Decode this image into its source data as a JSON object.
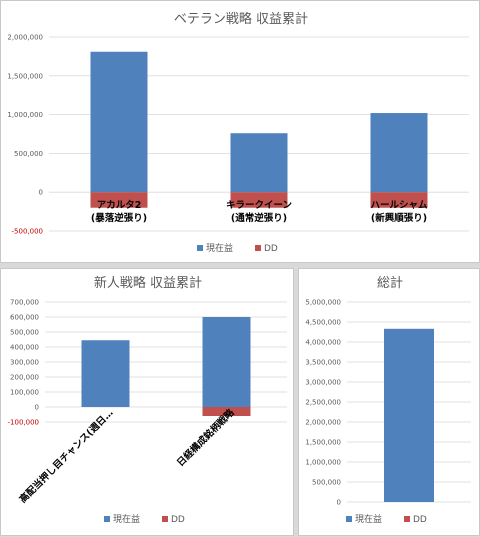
{
  "colors": {
    "current": "#4f81bd",
    "dd": "#c0504d",
    "grid": "#d9d9d9",
    "negative_tick": "#c00000"
  },
  "chart_data": [
    {
      "type": "bar",
      "title": "ベテラン戦略 収益累計",
      "categories": [
        "アカルタ2\n(暴落逆張り)",
        "キラークイーン\n(通常逆張り)",
        "ハールシャム\n(新興順張り)"
      ],
      "series": [
        {
          "name": "現在益",
          "values": [
            1810000,
            760000,
            1020000
          ]
        },
        {
          "name": "DD",
          "values": [
            -200000,
            -200000,
            -200000
          ]
        }
      ],
      "yticks": [
        "2,000,000",
        "1,500,000",
        "1,000,000",
        "500,000",
        "0",
        "-500,000"
      ],
      "ylim": [
        -500000,
        2000000
      ],
      "legend": "bottom"
    },
    {
      "type": "bar",
      "title": "新人戦略 収益累計",
      "categories": [
        "高配当押し目チャンス(週日…",
        "日経構成銘柄戦略"
      ],
      "series": [
        {
          "name": "現在益",
          "values": [
            445000,
            600000
          ]
        },
        {
          "name": "DD",
          "values": [
            0,
            -60000
          ]
        }
      ],
      "yticks": [
        "700,000",
        "600,000",
        "500,000",
        "400,000",
        "300,000",
        "200,000",
        "100,000",
        "0",
        "-100,000"
      ],
      "ylim": [
        -100000,
        700000
      ],
      "legend": "bottom"
    },
    {
      "type": "bar",
      "title": "総計",
      "categories": [
        ""
      ],
      "series": [
        {
          "name": "現在益",
          "values": [
            4330000
          ]
        },
        {
          "name": "DD",
          "values": [
            0
          ]
        }
      ],
      "yticks": [
        "5,000,000",
        "4,500,000",
        "4,000,000",
        "3,500,000",
        "3,000,000",
        "2,500,000",
        "2,000,000",
        "1,500,000",
        "1,000,000",
        "500,000",
        "0"
      ],
      "ylim": [
        0,
        5000000
      ],
      "legend": "bottom"
    }
  ]
}
